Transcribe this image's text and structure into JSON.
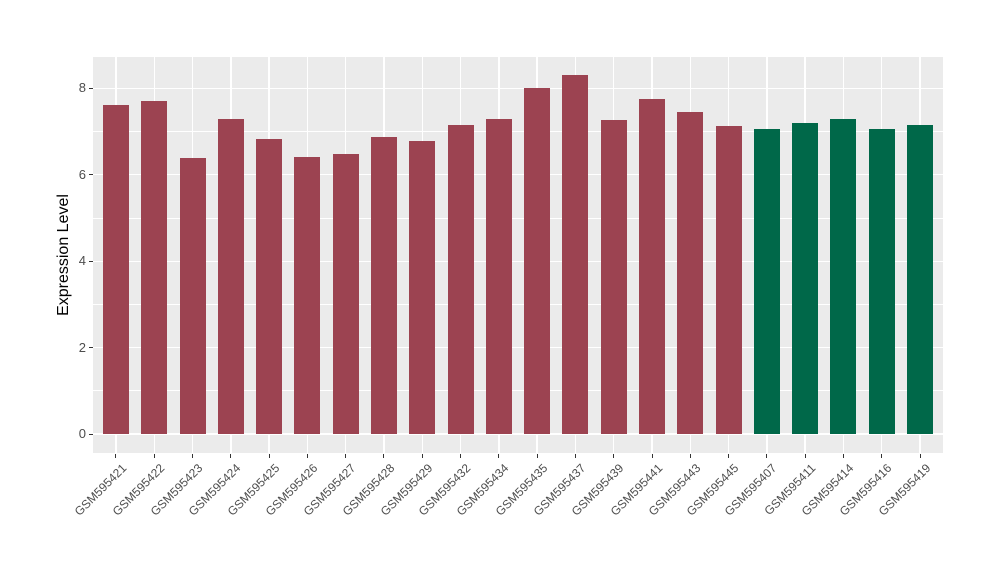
{
  "figure_style": {
    "background": "#FFFFFF",
    "panel_background": "#EBEBEB",
    "gridline_color": "#FFFFFF",
    "axis_text_color": "#4D4D4D",
    "axis_title_color": "#000000",
    "tick_mark_color": "#333333",
    "bar_color_left_group": "#9C4351",
    "bar_color_right_group": "#006849"
  },
  "chart_data": {
    "type": "bar",
    "title": "",
    "xlabel": "",
    "ylabel": "Expression Level",
    "ylim": [
      0,
      8.73
    ],
    "yticks": [
      0,
      2,
      4,
      6,
      8
    ],
    "yticks_minor": [
      1,
      3,
      5,
      7
    ],
    "grid": "on",
    "legend": "none",
    "categories": [
      "GSM595421",
      "GSM595422",
      "GSM595423",
      "GSM595424",
      "GSM595425",
      "GSM595426",
      "GSM595427",
      "GSM595428",
      "GSM595429",
      "GSM595432",
      "GSM595434",
      "GSM595435",
      "GSM595437",
      "GSM595439",
      "GSM595441",
      "GSM595443",
      "GSM595445",
      "GSM595407",
      "GSM595411",
      "GSM595414",
      "GSM595416",
      "GSM595419"
    ],
    "values": [
      7.62,
      7.7,
      6.4,
      7.3,
      6.83,
      6.42,
      6.49,
      6.87,
      6.78,
      7.15,
      7.3,
      8.02,
      8.31,
      7.27,
      7.75,
      7.46,
      7.12,
      7.07,
      7.21,
      7.3,
      7.07,
      7.16
    ],
    "colors": [
      "#9C4351",
      "#9C4351",
      "#9C4351",
      "#9C4351",
      "#9C4351",
      "#9C4351",
      "#9C4351",
      "#9C4351",
      "#9C4351",
      "#9C4351",
      "#9C4351",
      "#9C4351",
      "#9C4351",
      "#9C4351",
      "#9C4351",
      "#9C4351",
      "#9C4351",
      "#006849",
      "#006849",
      "#006849",
      "#006849",
      "#006849"
    ]
  }
}
